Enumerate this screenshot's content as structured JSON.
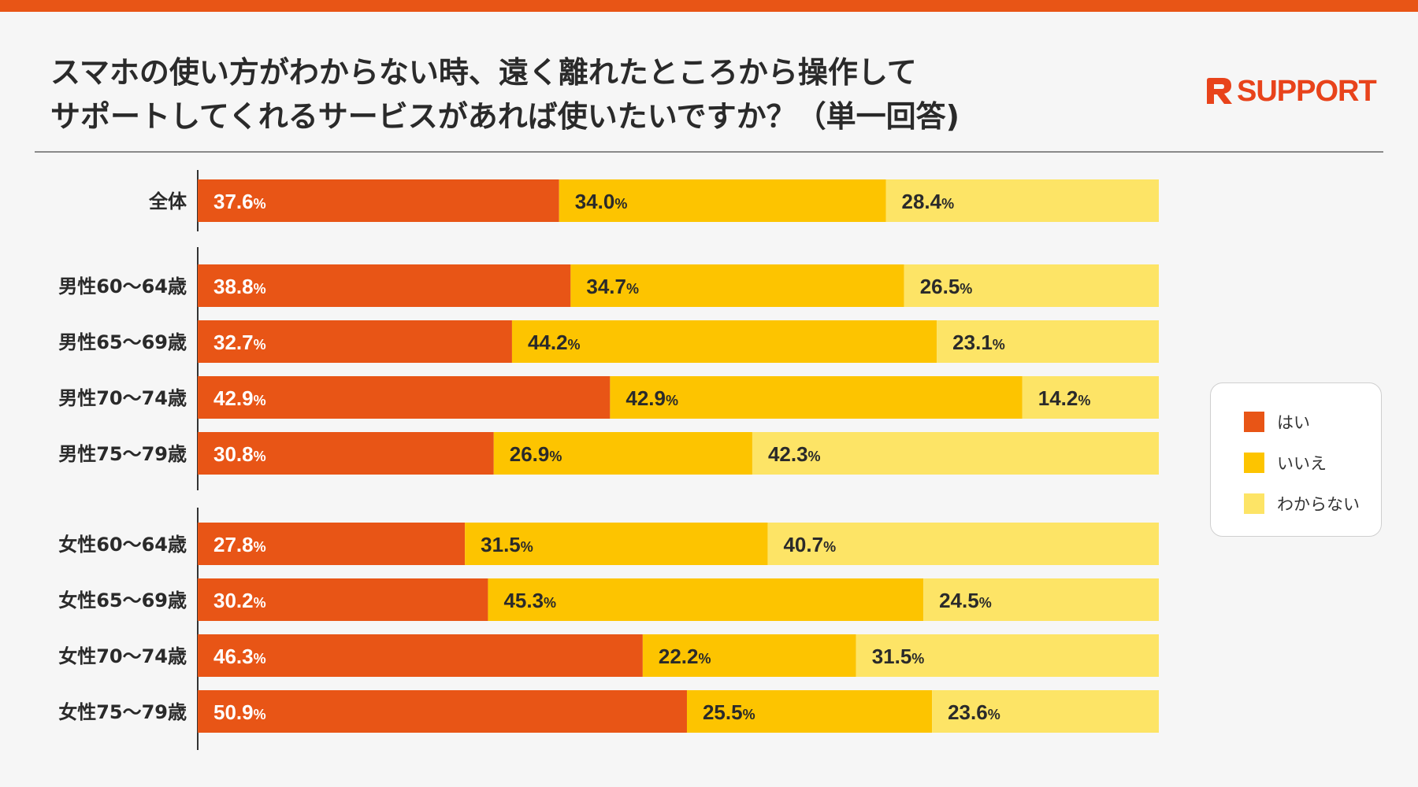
{
  "title": {
    "line1": "スマホの使い方がわからない時、遠く離れたところから操作して",
    "line2": "サポートしてくれるサービスがあれば使いたいですか？（単一回答)"
  },
  "logo": {
    "text": "SUPPORT",
    "icon": "rsupport-r-logo-icon"
  },
  "colors": {
    "accent": "#e85516",
    "hai": "#e85516",
    "iie": "#fdc400",
    "wakaranai": "#fde466"
  },
  "chart_data": {
    "type": "bar",
    "orientation": "horizontal",
    "stacked": true,
    "normalized_100": true,
    "unit": "%",
    "categories": [
      "全体",
      "男性60～64歳",
      "男性65～69歳",
      "男性70～74歳",
      "男性75～79歳",
      "女性60～64歳",
      "女性65～69歳",
      "女性70～74歳",
      "女性75～79歳"
    ],
    "groups": [
      {
        "name": "total",
        "categories": [
          "全体"
        ]
      },
      {
        "name": "male",
        "categories": [
          "男性60～64歳",
          "男性65～69歳",
          "男性70～74歳",
          "男性75～79歳"
        ]
      },
      {
        "name": "female",
        "categories": [
          "女性60～64歳",
          "女性65～69歳",
          "女性70～74歳",
          "女性75～79歳"
        ]
      }
    ],
    "series": [
      {
        "name": "はい",
        "values": [
          37.6,
          38.8,
          32.7,
          42.9,
          30.8,
          27.8,
          30.2,
          46.3,
          50.9
        ]
      },
      {
        "name": "いいえ",
        "values": [
          34.0,
          34.7,
          44.2,
          42.9,
          26.9,
          31.5,
          45.3,
          22.2,
          25.5
        ]
      },
      {
        "name": "わからない",
        "values": [
          28.4,
          26.5,
          23.1,
          14.2,
          42.3,
          40.7,
          24.5,
          31.5,
          23.6
        ]
      }
    ],
    "legend": {
      "position": "right",
      "entries": [
        "はい",
        "いいえ",
        "わからない"
      ]
    }
  }
}
